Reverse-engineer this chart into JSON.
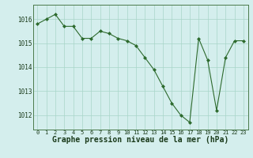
{
  "x": [
    0,
    1,
    2,
    3,
    4,
    5,
    6,
    7,
    8,
    9,
    10,
    11,
    12,
    13,
    14,
    15,
    16,
    17,
    18,
    19,
    20,
    21,
    22,
    23
  ],
  "y": [
    1015.8,
    1016.0,
    1016.2,
    1015.7,
    1015.7,
    1015.2,
    1015.2,
    1015.5,
    1015.4,
    1015.2,
    1015.1,
    1014.9,
    1014.4,
    1013.9,
    1013.2,
    1012.5,
    1012.0,
    1011.7,
    1015.2,
    1014.3,
    1012.2,
    1014.4,
    1015.1,
    1015.1
  ],
  "line_color": "#2d6a2d",
  "marker": "D",
  "marker_size": 2,
  "bg_color": "#d4eeed",
  "grid_color": "#a8d5c8",
  "ylabel_values": [
    1012,
    1013,
    1014,
    1015,
    1016
  ],
  "xlabel_label": "Graphe pression niveau de la mer (hPa)",
  "xlabel_fontsize": 7,
  "tick_fontsize": 5,
  "xlabel_color": "#1a3a1a",
  "xlim": [
    -0.5,
    23.5
  ],
  "ylim": [
    1011.4,
    1016.6
  ]
}
